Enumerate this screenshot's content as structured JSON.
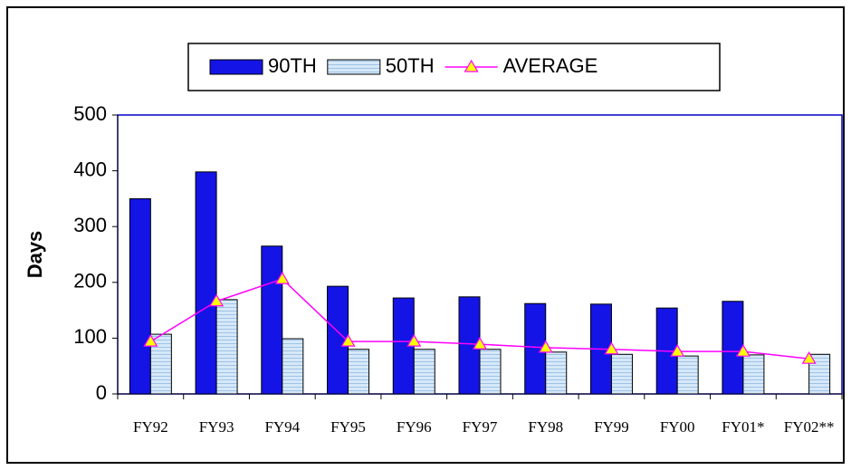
{
  "chart_data": {
    "type": "bar",
    "categories": [
      "FY92",
      "FY93",
      "FY94",
      "FY95",
      "FY96",
      "FY97",
      "FY98",
      "FY99",
      "FY00",
      "FY01*",
      "FY02**"
    ],
    "series": [
      {
        "name": "90TH",
        "type": "bar",
        "color": "#1414e6",
        "values": [
          350,
          398,
          265,
          193,
          172,
          174,
          162,
          161,
          154,
          166,
          null
        ]
      },
      {
        "name": "50TH",
        "type": "bar",
        "color": "#d6e8f8",
        "values": [
          107,
          169,
          99,
          80,
          80,
          80,
          75,
          71,
          68,
          70,
          71
        ]
      },
      {
        "name": "AVERAGE",
        "type": "line",
        "color": "#ff00ff",
        "marker_color": "#ffff00",
        "values": [
          94,
          166,
          206,
          94,
          94,
          89,
          83,
          80,
          76,
          76,
          63
        ]
      }
    ],
    "y_label": "Days",
    "ylim": [
      0,
      500
    ],
    "yticks": [
      0,
      100,
      200,
      300,
      400,
      500
    ],
    "legend": "top"
  }
}
